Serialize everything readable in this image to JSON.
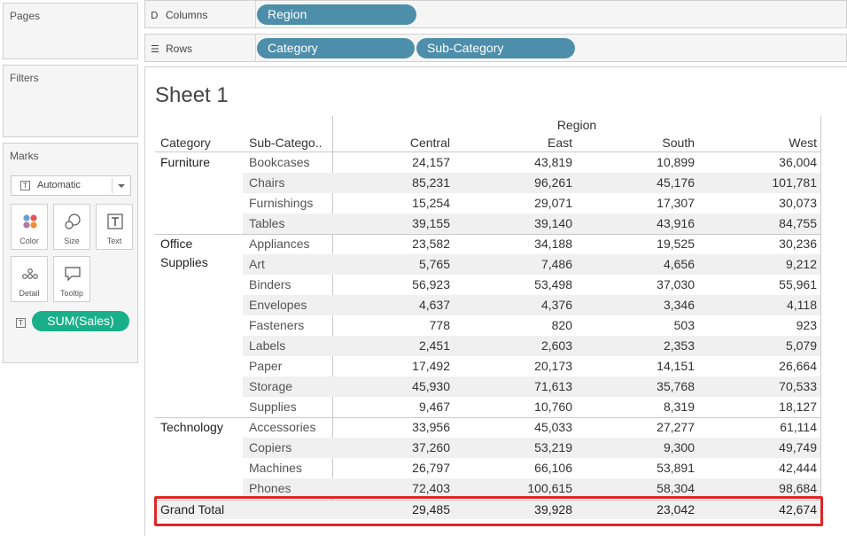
{
  "left_panel": {
    "pages_title": "Pages",
    "filters_title": "Filters",
    "marks_title": "Marks",
    "mark_type": "Automatic",
    "mark_buttons": {
      "color": "Color",
      "size": "Size",
      "text": "Text",
      "detail": "Detail",
      "tooltip": "Tooltip"
    },
    "measure_pill": "SUM(Sales)",
    "colors": {
      "pill_green": "#1aaf8b",
      "color_dots": [
        "#6a9fd4",
        "#e15759",
        "#b07aa1",
        "#f28e2b"
      ]
    }
  },
  "shelves": {
    "columns_label": "Columns",
    "rows_label": "Rows",
    "columns_pills": [
      "Region"
    ],
    "rows_pills": [
      "Category",
      "Sub-Category"
    ],
    "pill_color": "#4d8eaa"
  },
  "sheet": {
    "title": "Sheet 1",
    "region_header": "Region",
    "col_headers": {
      "category": "Category",
      "subcategory": "Sub-Catego..",
      "regions": [
        "Central",
        "East",
        "South",
        "West"
      ]
    },
    "categories": [
      {
        "name_lines": [
          "Furniture"
        ],
        "rows": [
          {
            "sub": "Bookcases",
            "values": [
              "24,157",
              "43,819",
              "10,899",
              "36,004"
            ]
          },
          {
            "sub": "Chairs",
            "values": [
              "85,231",
              "96,261",
              "45,176",
              "101,781"
            ]
          },
          {
            "sub": "Furnishings",
            "values": [
              "15,254",
              "29,071",
              "17,307",
              "30,073"
            ]
          },
          {
            "sub": "Tables",
            "values": [
              "39,155",
              "39,140",
              "43,916",
              "84,755"
            ]
          }
        ]
      },
      {
        "name_lines": [
          "Office",
          "Supplies"
        ],
        "rows": [
          {
            "sub": "Appliances",
            "values": [
              "23,582",
              "34,188",
              "19,525",
              "30,236"
            ]
          },
          {
            "sub": "Art",
            "values": [
              "5,765",
              "7,486",
              "4,656",
              "9,212"
            ]
          },
          {
            "sub": "Binders",
            "values": [
              "56,923",
              "53,498",
              "37,030",
              "55,961"
            ]
          },
          {
            "sub": "Envelopes",
            "values": [
              "4,637",
              "4,376",
              "3,346",
              "4,118"
            ]
          },
          {
            "sub": "Fasteners",
            "values": [
              "778",
              "820",
              "503",
              "923"
            ]
          },
          {
            "sub": "Labels",
            "values": [
              "2,451",
              "2,603",
              "2,353",
              "5,079"
            ]
          },
          {
            "sub": "Paper",
            "values": [
              "17,492",
              "20,173",
              "14,151",
              "26,664"
            ]
          },
          {
            "sub": "Storage",
            "values": [
              "45,930",
              "71,613",
              "35,768",
              "70,533"
            ]
          },
          {
            "sub": "Supplies",
            "values": [
              "9,467",
              "10,760",
              "8,319",
              "18,127"
            ]
          }
        ]
      },
      {
        "name_lines": [
          "Technology"
        ],
        "rows": [
          {
            "sub": "Accessories",
            "values": [
              "33,956",
              "45,033",
              "27,277",
              "61,114"
            ]
          },
          {
            "sub": "Copiers",
            "values": [
              "37,260",
              "53,219",
              "9,300",
              "49,749"
            ]
          },
          {
            "sub": "Machines",
            "values": [
              "26,797",
              "66,106",
              "53,891",
              "42,444"
            ]
          },
          {
            "sub": "Phones",
            "values": [
              "72,403",
              "100,615",
              "58,304",
              "98,684"
            ]
          }
        ]
      }
    ],
    "grand_total": {
      "label": "Grand Total",
      "values": [
        "29,485",
        "39,928",
        "23,042",
        "42,674"
      ]
    },
    "highlight_color": "#e02525"
  }
}
